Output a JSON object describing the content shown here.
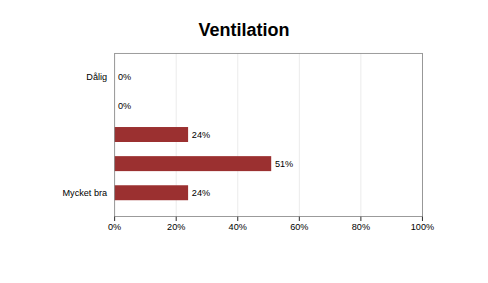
{
  "chart_data": {
    "type": "bar",
    "title": "Ventilation",
    "orientation": "horizontal",
    "categories": [
      "Dålig",
      null,
      null,
      null,
      "Mycket bra"
    ],
    "values": [
      0,
      0,
      24,
      51,
      24
    ],
    "value_labels": [
      "0%",
      "0%",
      "24%",
      "51%",
      "24%"
    ],
    "data_labels": true,
    "color": "#9b3030",
    "xlim": [
      0,
      100
    ],
    "xticks": [
      {
        "value": 0,
        "label": "0%"
      },
      {
        "value": 20,
        "label": "20%"
      },
      {
        "value": 40,
        "label": "40%"
      },
      {
        "value": 60,
        "label": "60%"
      },
      {
        "value": 80,
        "label": "80%"
      },
      {
        "value": 100,
        "label": "100%"
      }
    ],
    "grid": true
  }
}
